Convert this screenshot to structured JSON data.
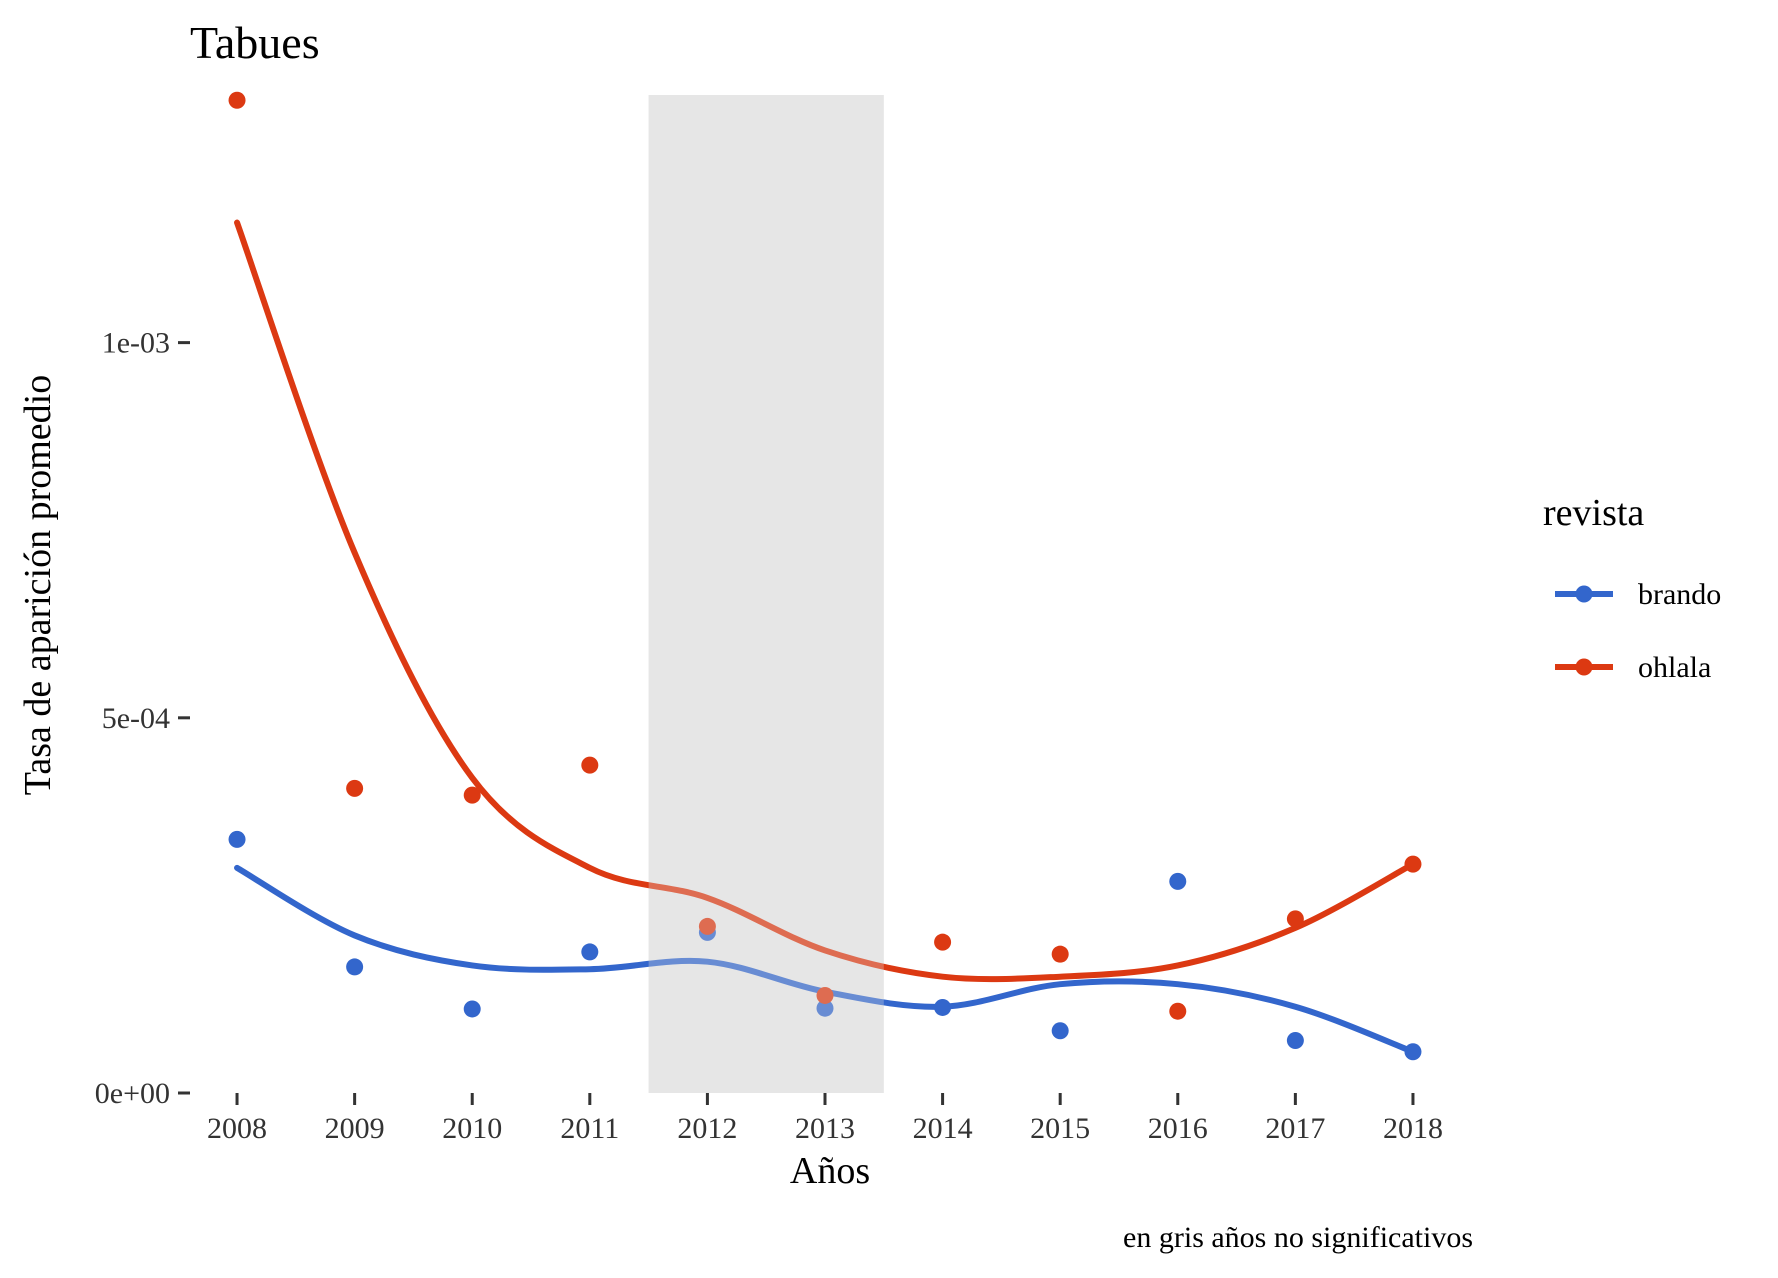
{
  "chart_data": {
    "type": "line",
    "title": "Tabues",
    "xlabel": "Años",
    "ylabel": "Tasa de aparición promedio",
    "caption": "en gris años no significativos",
    "x": [
      2008,
      2009,
      2010,
      2011,
      2012,
      2013,
      2014,
      2015,
      2016,
      2017,
      2018
    ],
    "xlim": [
      2007.6,
      2018.4
    ],
    "ylim": [
      0,
      0.00133
    ],
    "y_ticks": [
      0,
      0.0005,
      0.001
    ],
    "y_tick_labels": [
      "0e+00",
      "5e-04",
      "1e-03"
    ],
    "x_tick_labels": [
      "2008",
      "2009",
      "2010",
      "2011",
      "2012",
      "2013",
      "2014",
      "2015",
      "2016",
      "2017",
      "2018"
    ],
    "grid": false,
    "shaded_region": {
      "x_range": [
        2011.5,
        2013.5
      ],
      "meaning": "años no significativos",
      "color": "#e3e3e3"
    },
    "legend": {
      "title": "revista",
      "position": "right"
    },
    "series": [
      {
        "name": "brando",
        "color": "#3366cc",
        "points": [
          0.000338,
          0.000168,
          0.000112,
          0.000188,
          0.000214,
          0.000113,
          0.000114,
          8.3e-05,
          0.000282,
          7e-05,
          5.5e-05
        ],
        "smooth": [
          0.0003,
          0.00021,
          0.00017,
          0.000165,
          0.000175,
          0.000135,
          0.000115,
          0.000145,
          0.000145,
          0.000115,
          5.5e-05
        ]
      },
      {
        "name": "ohlala",
        "color": "#dc3912",
        "points": [
          0.001323,
          0.000406,
          0.000397,
          0.000437,
          0.000222,
          0.00013,
          0.000201,
          0.000185,
          0.000109,
          0.000232,
          0.000305
        ],
        "smooth": [
          0.00116,
          0.00072,
          0.00042,
          0.0003,
          0.00026,
          0.00019,
          0.000155,
          0.000155,
          0.00017,
          0.00022,
          0.000305
        ]
      }
    ]
  }
}
